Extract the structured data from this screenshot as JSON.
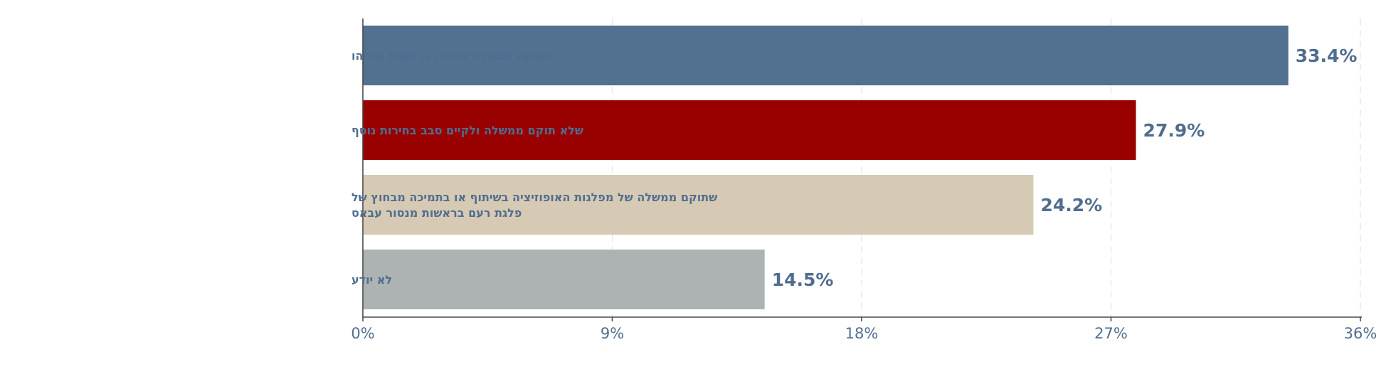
{
  "chart_data": {
    "type": "bar",
    "orientation": "horizontal",
    "title": "",
    "xlabel": "",
    "ylabel": "",
    "categories": [
      "שתוקם ממשלת אחדות בראשות נתניהו",
      "שלא תוקם ממשלה ולקיים סבב בחירות נוסף",
      "שתוקם ממשלה של מפלגות האופוזיציה בשיתוף או בתמיכה מבחוץ של פלגת רעם בראשות מנסור עבאס",
      "לא יודע"
    ],
    "category_lines": [
      [
        "שתוקם ממשלת אחדות בראשות נתניהו"
      ],
      [
        "שלא תוקם ממשלה ולקיים סבב בחירות נוסף"
      ],
      [
        "שתוקם ממשלה של מפלגות האופוזיציה בשיתוף או בתמיכה מבחוץ של",
        "פלגת רעם בראשות מנסור עבאס"
      ],
      [
        "לא יודע"
      ]
    ],
    "values": [
      33.4,
      27.9,
      24.2,
      14.5
    ],
    "value_labels": [
      "33.4%",
      "27.9%",
      "24.2%",
      "14.5%"
    ],
    "colors": [
      "#52708f",
      "#990000",
      "#d6cab5",
      "#adb3b3"
    ],
    "xlim": [
      0,
      36
    ],
    "xticks": [
      0,
      9,
      18,
      27,
      36
    ],
    "xtick_labels": [
      "0%",
      "9%",
      "18%",
      "27%",
      "36%"
    ],
    "grid": true,
    "legend": "none"
  }
}
